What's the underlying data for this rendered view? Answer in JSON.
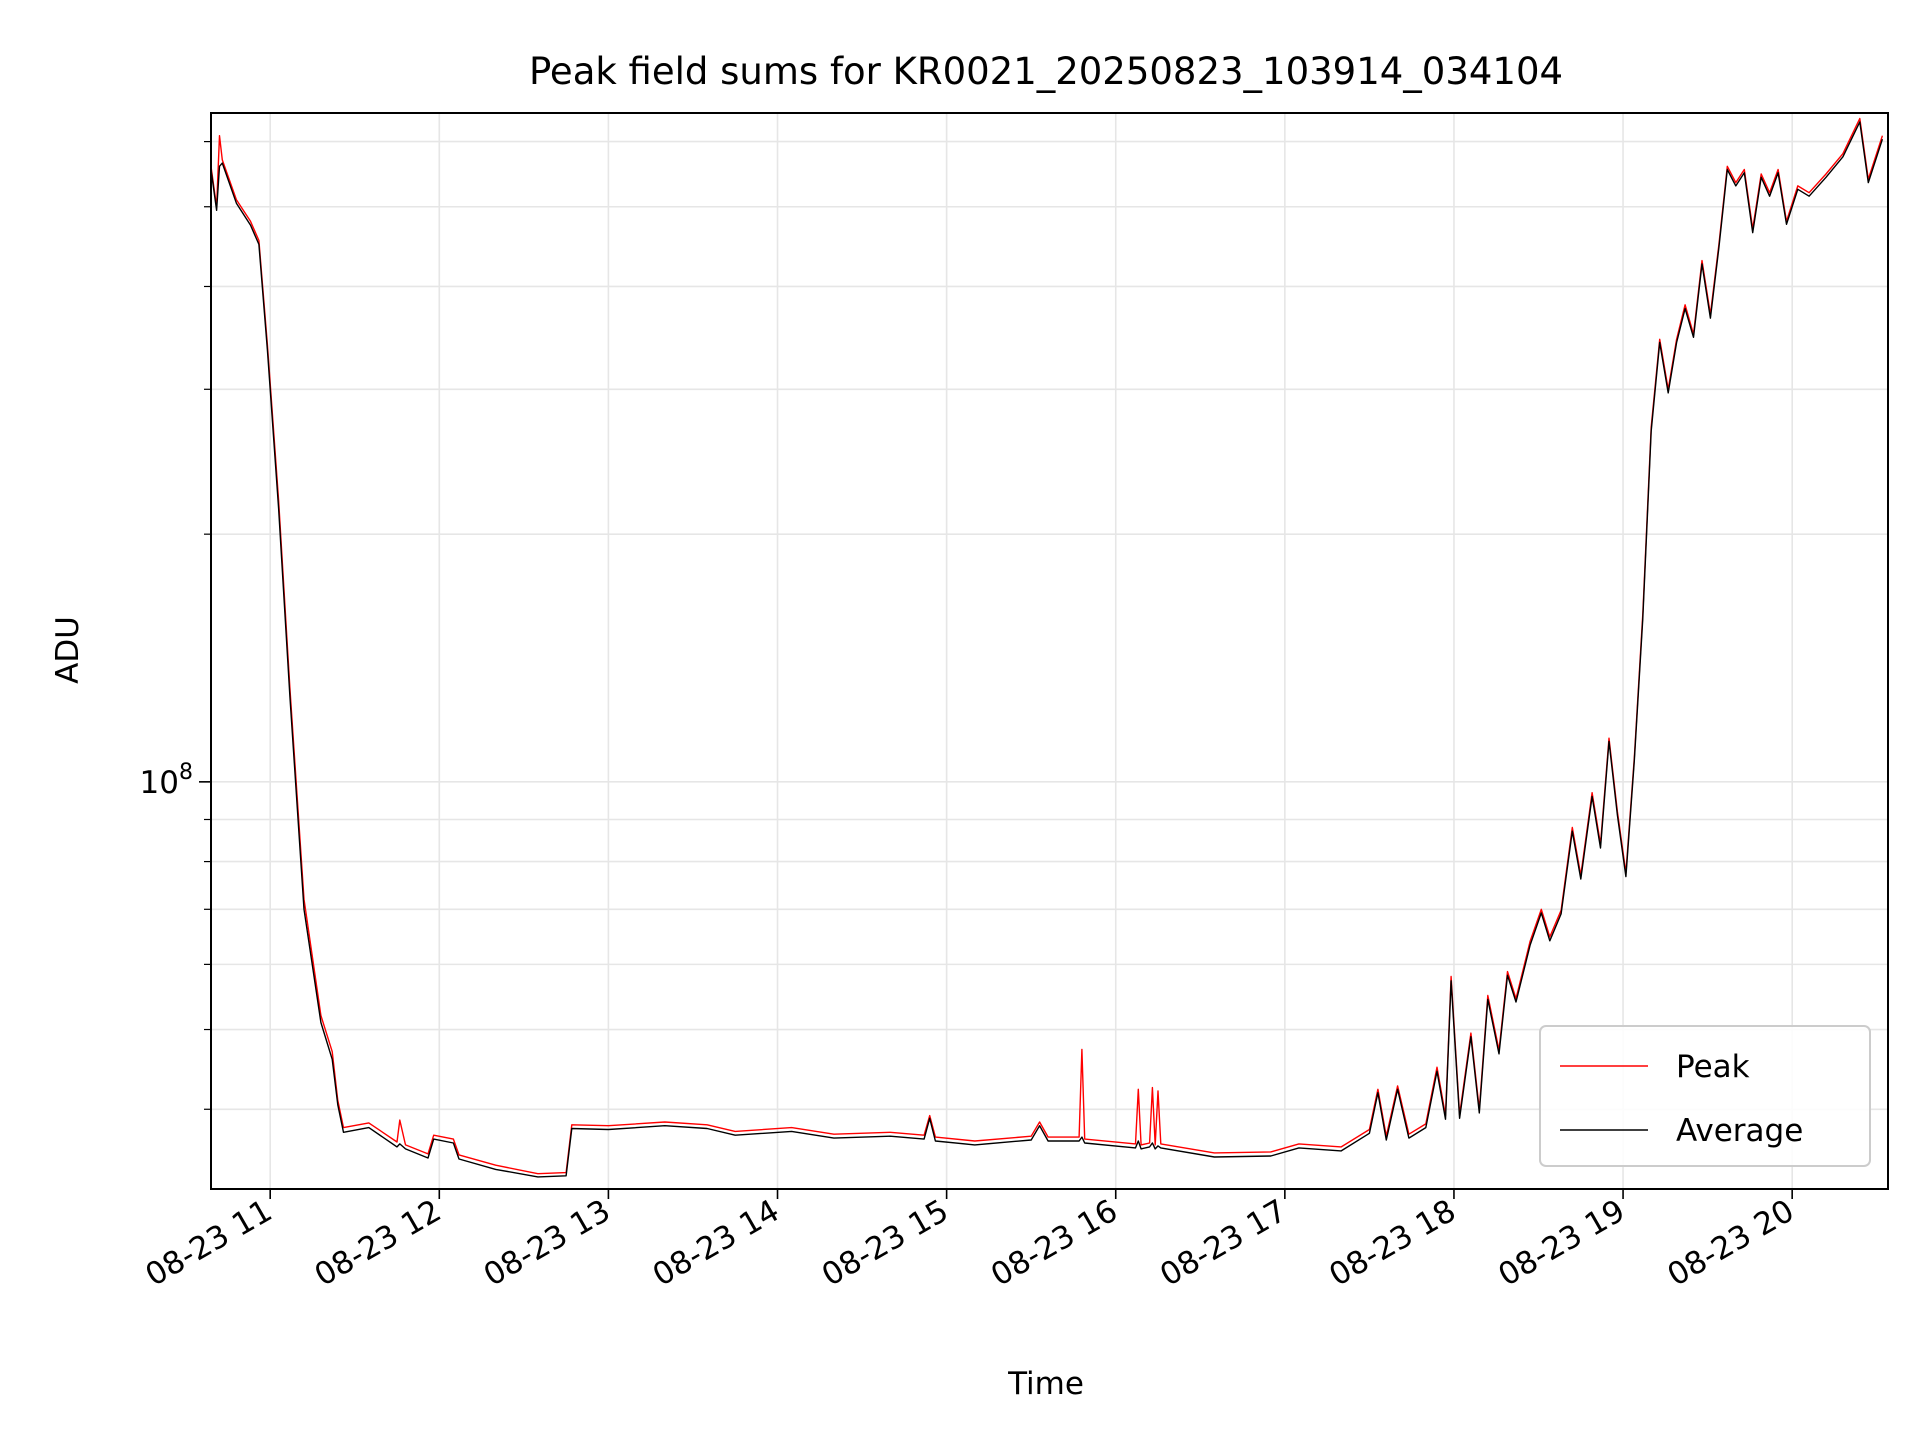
{
  "chart_data": {
    "type": "line",
    "title": "Peak field sums for KR0021_20250823_103914_034104",
    "xlabel": "Time",
    "ylabel": "ADU",
    "y_scale": "log",
    "grid": true,
    "legend_position": "lower-right",
    "xlim": [
      "2025-08-23 10:39",
      "2025-08-23 20:34"
    ],
    "ylim": [
      32000000,
      650000000
    ],
    "x_tick_labels": [
      "08-23 11",
      "08-23 12",
      "08-23 13",
      "08-23 14",
      "08-23 15",
      "08-23 16",
      "08-23 17",
      "08-23 18",
      "08-23 19",
      "08-23 20"
    ],
    "y_tick_labels": [
      {
        "value": 100000000,
        "base": "10",
        "exponent": "8"
      }
    ],
    "series": [
      {
        "name": "Peak",
        "color": "#ff0000",
        "points": [
          [
            "2025-08-23 10:39",
            560000000
          ],
          [
            "2025-08-23 10:41",
            500000000
          ],
          [
            "2025-08-23 10:42",
            610000000
          ],
          [
            "2025-08-23 10:43",
            570000000
          ],
          [
            "2025-08-23 10:48",
            510000000
          ],
          [
            "2025-08-23 10:53",
            480000000
          ],
          [
            "2025-08-23 10:56",
            455000000
          ],
          [
            "2025-08-23 10:59",
            340000000
          ],
          [
            "2025-08-23 11:03",
            220000000
          ],
          [
            "2025-08-23 11:07",
            130000000
          ],
          [
            "2025-08-23 11:12",
            72000000
          ],
          [
            "2025-08-23 11:18",
            52000000
          ],
          [
            "2025-08-23 11:22",
            47000000
          ],
          [
            "2025-08-23 11:24",
            41000000
          ],
          [
            "2025-08-23 11:26",
            38000000
          ],
          [
            "2025-08-23 11:35",
            38500000
          ],
          [
            "2025-08-23 11:45",
            36500000
          ],
          [
            "2025-08-23 11:46",
            38800000
          ],
          [
            "2025-08-23 11:48",
            36200000
          ],
          [
            "2025-08-23 11:56",
            35300000
          ],
          [
            "2025-08-23 11:58",
            37200000
          ],
          [
            "2025-08-23 12:05",
            36800000
          ],
          [
            "2025-08-23 12:07",
            35200000
          ],
          [
            "2025-08-23 12:20",
            34200000
          ],
          [
            "2025-08-23 12:35",
            33400000
          ],
          [
            "2025-08-23 12:45",
            33500000
          ],
          [
            "2025-08-23 12:47",
            38300000
          ],
          [
            "2025-08-23 13:00",
            38200000
          ],
          [
            "2025-08-23 13:20",
            38600000
          ],
          [
            "2025-08-23 13:35",
            38300000
          ],
          [
            "2025-08-23 13:45",
            37600000
          ],
          [
            "2025-08-23 14:05",
            38000000
          ],
          [
            "2025-08-23 14:20",
            37300000
          ],
          [
            "2025-08-23 14:40",
            37500000
          ],
          [
            "2025-08-23 14:52",
            37200000
          ],
          [
            "2025-08-23 14:54",
            39300000
          ],
          [
            "2025-08-23 14:56",
            37000000
          ],
          [
            "2025-08-23 15:10",
            36600000
          ],
          [
            "2025-08-23 15:30",
            37100000
          ],
          [
            "2025-08-23 15:33",
            38600000
          ],
          [
            "2025-08-23 15:36",
            37000000
          ],
          [
            "2025-08-23 15:47",
            37000000
          ],
          [
            "2025-08-23 15:48",
            47300000
          ],
          [
            "2025-08-23 15:49",
            36800000
          ],
          [
            "2025-08-23 16:07",
            36300000
          ],
          [
            "2025-08-23 16:08",
            42300000
          ],
          [
            "2025-08-23 16:09",
            36200000
          ],
          [
            "2025-08-23 16:12",
            36400000
          ],
          [
            "2025-08-23 16:13",
            42500000
          ],
          [
            "2025-08-23 16:14",
            36200000
          ],
          [
            "2025-08-23 16:15",
            42100000
          ],
          [
            "2025-08-23 16:16",
            36300000
          ],
          [
            "2025-08-23 16:35",
            35400000
          ],
          [
            "2025-08-23 16:55",
            35500000
          ],
          [
            "2025-08-23 17:05",
            36300000
          ],
          [
            "2025-08-23 17:20",
            36000000
          ],
          [
            "2025-08-23 17:30",
            37800000
          ],
          [
            "2025-08-23 17:33",
            42300000
          ],
          [
            "2025-08-23 17:36",
            37100000
          ],
          [
            "2025-08-23 17:40",
            42700000
          ],
          [
            "2025-08-23 17:44",
            37300000
          ],
          [
            "2025-08-23 17:50",
            38400000
          ],
          [
            "2025-08-23 17:54",
            45000000
          ],
          [
            "2025-08-23 17:57",
            39300000
          ],
          [
            "2025-08-23 17:59",
            58000000
          ],
          [
            "2025-08-23 18:02",
            39400000
          ],
          [
            "2025-08-23 18:06",
            49500000
          ],
          [
            "2025-08-23 18:09",
            40000000
          ],
          [
            "2025-08-23 18:12",
            55000000
          ],
          [
            "2025-08-23 18:16",
            47200000
          ],
          [
            "2025-08-23 18:19",
            58800000
          ],
          [
            "2025-08-23 18:22",
            54500000
          ],
          [
            "2025-08-23 18:27",
            64000000
          ],
          [
            "2025-08-23 18:31",
            70000000
          ],
          [
            "2025-08-23 18:34",
            64800000
          ],
          [
            "2025-08-23 18:38",
            69800000
          ],
          [
            "2025-08-23 18:42",
            88000000
          ],
          [
            "2025-08-23 18:45",
            77000000
          ],
          [
            "2025-08-23 18:49",
            97000000
          ],
          [
            "2025-08-23 18:52",
            84000000
          ],
          [
            "2025-08-23 18:55",
            113000000
          ],
          [
            "2025-08-23 18:58",
            92000000
          ],
          [
            "2025-08-23 19:01",
            77500000
          ],
          [
            "2025-08-23 19:04",
            107000000
          ],
          [
            "2025-08-23 19:07",
            160000000
          ],
          [
            "2025-08-23 19:10",
            270000000
          ],
          [
            "2025-08-23 19:13",
            345000000
          ],
          [
            "2025-08-23 19:16",
            300000000
          ],
          [
            "2025-08-23 19:19",
            345000000
          ],
          [
            "2025-08-23 19:22",
            380000000
          ],
          [
            "2025-08-23 19:25",
            350000000
          ],
          [
            "2025-08-23 19:28",
            430000000
          ],
          [
            "2025-08-23 19:31",
            370000000
          ],
          [
            "2025-08-23 19:34",
            450000000
          ],
          [
            "2025-08-23 19:37",
            560000000
          ],
          [
            "2025-08-23 19:40",
            535000000
          ],
          [
            "2025-08-23 19:43",
            555000000
          ],
          [
            "2025-08-23 19:46",
            470000000
          ],
          [
            "2025-08-23 19:49",
            548000000
          ],
          [
            "2025-08-23 19:52",
            520000000
          ],
          [
            "2025-08-23 19:55",
            555000000
          ],
          [
            "2025-08-23 19:58",
            480000000
          ],
          [
            "2025-08-23 20:02",
            530000000
          ],
          [
            "2025-08-23 20:06",
            520000000
          ],
          [
            "2025-08-23 20:12",
            548000000
          ],
          [
            "2025-08-23 20:18",
            580000000
          ],
          [
            "2025-08-23 20:24",
            640000000
          ],
          [
            "2025-08-23 20:27",
            540000000
          ],
          [
            "2025-08-23 20:32",
            610000000
          ]
        ]
      },
      {
        "name": "Average",
        "color": "#000000",
        "points": [
          [
            "2025-08-23 10:39",
            555000000
          ],
          [
            "2025-08-23 10:41",
            495000000
          ],
          [
            "2025-08-23 10:42",
            560000000
          ],
          [
            "2025-08-23 10:43",
            565000000
          ],
          [
            "2025-08-23 10:48",
            505000000
          ],
          [
            "2025-08-23 10:53",
            475000000
          ],
          [
            "2025-08-23 10:56",
            450000000
          ],
          [
            "2025-08-23 10:59",
            335000000
          ],
          [
            "2025-08-23 11:03",
            215000000
          ],
          [
            "2025-08-23 11:07",
            127000000
          ],
          [
            "2025-08-23 11:12",
            70000000
          ],
          [
            "2025-08-23 11:18",
            51000000
          ],
          [
            "2025-08-23 11:22",
            46000000
          ],
          [
            "2025-08-23 11:24",
            40500000
          ],
          [
            "2025-08-23 11:26",
            37500000
          ],
          [
            "2025-08-23 11:35",
            38000000
          ],
          [
            "2025-08-23 11:45",
            36000000
          ],
          [
            "2025-08-23 11:46",
            36300000
          ],
          [
            "2025-08-23 11:48",
            35800000
          ],
          [
            "2025-08-23 11:56",
            34900000
          ],
          [
            "2025-08-23 11:58",
            36800000
          ],
          [
            "2025-08-23 12:05",
            36400000
          ],
          [
            "2025-08-23 12:07",
            34800000
          ],
          [
            "2025-08-23 12:20",
            33800000
          ],
          [
            "2025-08-23 12:35",
            33100000
          ],
          [
            "2025-08-23 12:45",
            33200000
          ],
          [
            "2025-08-23 12:47",
            37900000
          ],
          [
            "2025-08-23 13:00",
            37800000
          ],
          [
            "2025-08-23 13:20",
            38200000
          ],
          [
            "2025-08-23 13:35",
            37900000
          ],
          [
            "2025-08-23 13:45",
            37200000
          ],
          [
            "2025-08-23 14:05",
            37600000
          ],
          [
            "2025-08-23 14:20",
            36900000
          ],
          [
            "2025-08-23 14:40",
            37100000
          ],
          [
            "2025-08-23 14:52",
            36800000
          ],
          [
            "2025-08-23 14:54",
            39000000
          ],
          [
            "2025-08-23 14:56",
            36600000
          ],
          [
            "2025-08-23 15:10",
            36200000
          ],
          [
            "2025-08-23 15:30",
            36700000
          ],
          [
            "2025-08-23 15:33",
            38200000
          ],
          [
            "2025-08-23 15:36",
            36600000
          ],
          [
            "2025-08-23 15:47",
            36600000
          ],
          [
            "2025-08-23 15:48",
            37000000
          ],
          [
            "2025-08-23 15:49",
            36400000
          ],
          [
            "2025-08-23 16:07",
            35900000
          ],
          [
            "2025-08-23 16:08",
            36600000
          ],
          [
            "2025-08-23 16:09",
            35800000
          ],
          [
            "2025-08-23 16:12",
            36000000
          ],
          [
            "2025-08-23 16:13",
            36400000
          ],
          [
            "2025-08-23 16:14",
            35800000
          ],
          [
            "2025-08-23 16:15",
            36100000
          ],
          [
            "2025-08-23 16:16",
            35900000
          ],
          [
            "2025-08-23 16:35",
            35000000
          ],
          [
            "2025-08-23 16:55",
            35100000
          ],
          [
            "2025-08-23 17:05",
            35900000
          ],
          [
            "2025-08-23 17:20",
            35600000
          ],
          [
            "2025-08-23 17:30",
            37400000
          ],
          [
            "2025-08-23 17:33",
            41900000
          ],
          [
            "2025-08-23 17:36",
            36700000
          ],
          [
            "2025-08-23 17:40",
            42300000
          ],
          [
            "2025-08-23 17:44",
            36900000
          ],
          [
            "2025-08-23 17:50",
            38000000
          ],
          [
            "2025-08-23 17:54",
            44500000
          ],
          [
            "2025-08-23 17:57",
            38900000
          ],
          [
            "2025-08-23 17:59",
            57300000
          ],
          [
            "2025-08-23 18:02",
            39000000
          ],
          [
            "2025-08-23 18:06",
            49000000
          ],
          [
            "2025-08-23 18:09",
            39600000
          ],
          [
            "2025-08-23 18:12",
            54400000
          ],
          [
            "2025-08-23 18:16",
            46700000
          ],
          [
            "2025-08-23 18:19",
            58200000
          ],
          [
            "2025-08-23 18:22",
            54000000
          ],
          [
            "2025-08-23 18:27",
            63300000
          ],
          [
            "2025-08-23 18:31",
            69300000
          ],
          [
            "2025-08-23 18:34",
            64100000
          ],
          [
            "2025-08-23 18:38",
            69100000
          ],
          [
            "2025-08-23 18:42",
            87100000
          ],
          [
            "2025-08-23 18:45",
            76200000
          ],
          [
            "2025-08-23 18:49",
            96000000
          ],
          [
            "2025-08-23 18:52",
            83100000
          ],
          [
            "2025-08-23 18:55",
            112000000
          ],
          [
            "2025-08-23 18:58",
            91100000
          ],
          [
            "2025-08-23 19:01",
            76700000
          ],
          [
            "2025-08-23 19:04",
            106000000
          ],
          [
            "2025-08-23 19:07",
            158000000
          ],
          [
            "2025-08-23 19:10",
            267000000
          ],
          [
            "2025-08-23 19:13",
            342000000
          ],
          [
            "2025-08-23 19:16",
            297000000
          ],
          [
            "2025-08-23 19:19",
            342000000
          ],
          [
            "2025-08-23 19:22",
            376000000
          ],
          [
            "2025-08-23 19:25",
            347000000
          ],
          [
            "2025-08-23 19:28",
            426000000
          ],
          [
            "2025-08-23 19:31",
            366000000
          ],
          [
            "2025-08-23 19:34",
            446000000
          ],
          [
            "2025-08-23 19:37",
            555000000
          ],
          [
            "2025-08-23 19:40",
            530000000
          ],
          [
            "2025-08-23 19:43",
            550000000
          ],
          [
            "2025-08-23 19:46",
            465000000
          ],
          [
            "2025-08-23 19:49",
            543000000
          ],
          [
            "2025-08-23 19:52",
            515000000
          ],
          [
            "2025-08-23 19:55",
            550000000
          ],
          [
            "2025-08-23 19:58",
            476000000
          ],
          [
            "2025-08-23 20:02",
            525000000
          ],
          [
            "2025-08-23 20:06",
            515000000
          ],
          [
            "2025-08-23 20:12",
            543000000
          ],
          [
            "2025-08-23 20:18",
            575000000
          ],
          [
            "2025-08-23 20:24",
            634000000
          ],
          [
            "2025-08-23 20:27",
            535000000
          ],
          [
            "2025-08-23 20:32",
            604000000
          ]
        ]
      }
    ]
  }
}
